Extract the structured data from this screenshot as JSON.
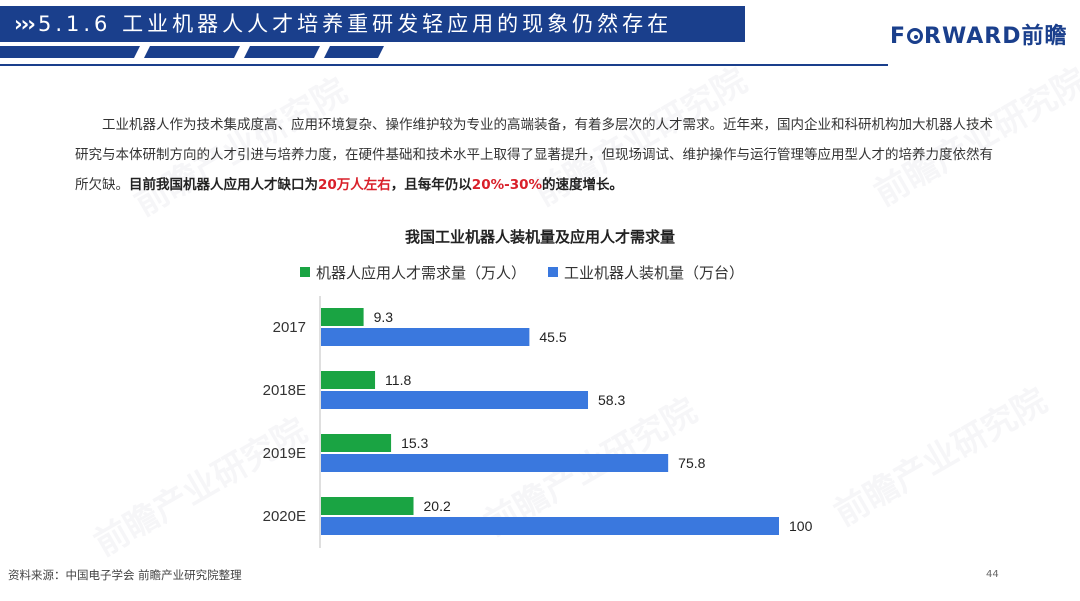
{
  "header": {
    "chevrons": "›››",
    "title": "5.1.6 工业机器人人才培养重研发轻应用的现象仍然存在",
    "logo_pre": "F",
    "logo_post": "RWARD前瞻",
    "brand_color": "#1a3f8c"
  },
  "paragraph": {
    "part1": "工业机器人作为技术集成度高、应用环境复杂、操作维护较为专业的高端装备，有着多层次的人才需求。近年来，国内企业和科研机构加大机器人技术研究与本体研制方向的人才引进与培养力度，在硬件基础和技术水平上取得了显著提升，但现场调试、维护操作与运行管理等应用型人才的培养力度依然有所欠缺。",
    "bold1": "目前我国机器人应用人才缺口为",
    "red1": "20万人左右",
    "bold2": "，且每年仍以",
    "red2": "20%-30%",
    "bold3": "的速度增长。"
  },
  "watermark": "前瞻产业研究院",
  "chart_data": {
    "type": "bar",
    "orientation": "horizontal",
    "title": "我国工业机器人装机量及应用人才需求量",
    "categories": [
      "2017",
      "2018E",
      "2019E",
      "2020E"
    ],
    "series": [
      {
        "name": "机器人应用人才需求量（万人）",
        "color": "#1aa443",
        "values": [
          9.3,
          11.8,
          15.3,
          20.2
        ]
      },
      {
        "name": "工业机器人装机量（万台）",
        "color": "#3a78de",
        "values": [
          45.5,
          58.3,
          75.8,
          100
        ]
      }
    ],
    "xlim": [
      0,
      100
    ],
    "grid": false,
    "legend_position": "top"
  },
  "footer": {
    "source": "资料来源：中国电子学会 前瞻产业研究院整理",
    "page": "44"
  }
}
